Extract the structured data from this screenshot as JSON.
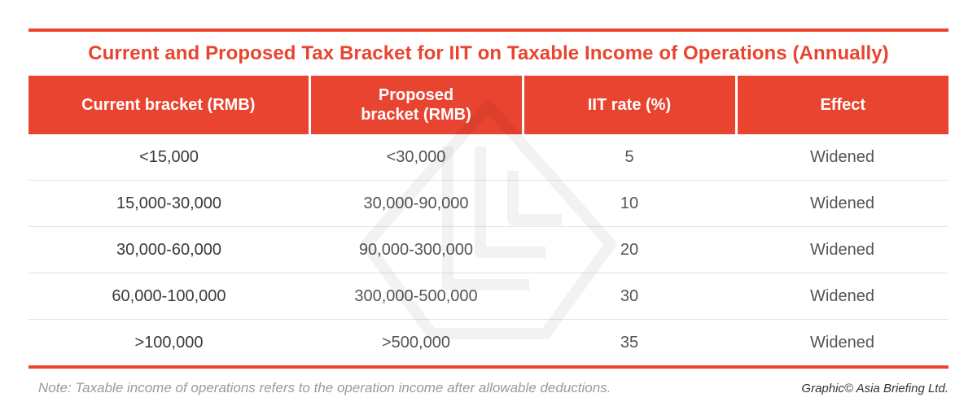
{
  "title": "Current and Proposed Tax Bracket for IIT on Taxable Income of Operations (Annually)",
  "columns": {
    "current": "Current bracket (RMB)",
    "proposed": "Proposed bracket (RMB)",
    "rate": "IIT rate (%)",
    "effect": "Effect"
  },
  "rows": [
    {
      "current": "<15,000",
      "proposed": "<30,000",
      "rate": "5",
      "effect": "Widened"
    },
    {
      "current": "15,000-30,000",
      "proposed": "30,000-90,000",
      "rate": "10",
      "effect": "Widened"
    },
    {
      "current": "30,000-60,000",
      "proposed": "90,000-300,000",
      "rate": "20",
      "effect": "Widened"
    },
    {
      "current": "60,000-100,000",
      "proposed": "300,000-500,000",
      "rate": "30",
      "effect": "Widened"
    },
    {
      "current": ">100,000",
      "proposed": ">500,000",
      "rate": "35",
      "effect": "Widened"
    }
  ],
  "note": "Note: Taxable income of operations refers to the operation income after allowable deductions.",
  "credit": "Graphic© Asia Briefing Ltd.",
  "colors": {
    "accent": "#e8442f",
    "header_text": "#ffffff",
    "body_text": "#555555",
    "note_text": "#9a9a9a"
  }
}
